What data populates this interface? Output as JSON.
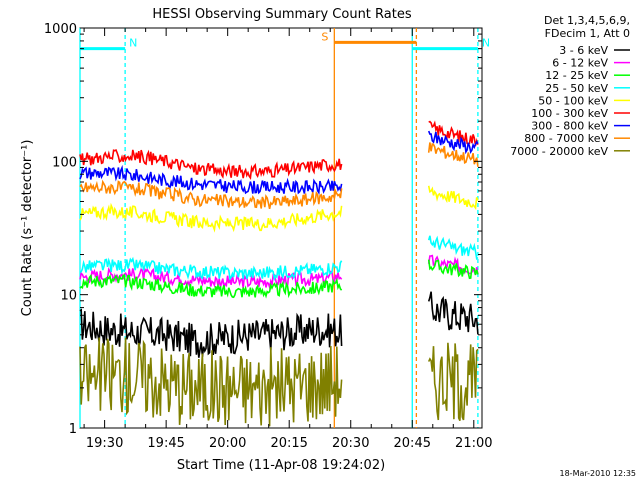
{
  "chart_data": {
    "type": "line",
    "title": "HESSI Observing Summary Count Rates",
    "xlabel": "Start Time (11-Apr-08 19:24:02)",
    "ylabel": "Count Rate (s⁻¹ detector⁻¹)",
    "y_scale": "log",
    "ylim": [
      1,
      1000
    ],
    "xlim": [
      "19:24",
      "21:02"
    ],
    "x_ticks": [
      "19:30",
      "19:45",
      "20:00",
      "20:15",
      "20:30",
      "20:45",
      "21:00"
    ],
    "y_ticks": [
      "1",
      "10",
      "100",
      "1000"
    ],
    "grid": false,
    "legend_position": "right",
    "legend_header": [
      "Det 1,3,4,5,6,9,",
      "FDecim 1, Att 0"
    ],
    "series": [
      {
        "name": "3 - 6 keV",
        "color": "#000000",
        "segments": [
          {
            "x": [
              "19:24",
              "19:30",
              "19:38",
              "19:45",
              "19:52",
              "20:00",
              "20:08",
              "20:15",
              "20:22",
              "20:28"
            ],
            "y": [
              6,
              5.5,
              5.2,
              5,
              4.5,
              4.8,
              5,
              5.2,
              5.5,
              5.3
            ]
          },
          {
            "x": [
              "20:49",
              "20:52",
              "20:55",
              "20:58",
              "21:01"
            ],
            "y": [
              8,
              7.5,
              7,
              6.8,
              6.5
            ]
          }
        ]
      },
      {
        "name": "6 - 12 keV",
        "color": "#ff00ff",
        "segments": [
          {
            "x": [
              "19:24",
              "19:30",
              "19:38",
              "19:45",
              "19:52",
              "20:00",
              "20:08",
              "20:15",
              "20:22",
              "20:28"
            ],
            "y": [
              13.5,
              14,
              14.2,
              13.5,
              13,
              12.5,
              12.5,
              13,
              13,
              14
            ]
          },
          {
            "x": [
              "20:49",
              "20:52",
              "20:55",
              "20:58",
              "21:01"
            ],
            "y": [
              18,
              17,
              16.5,
              16,
              15.5
            ]
          }
        ]
      },
      {
        "name": "12 - 25 keV",
        "color": "#00ff00",
        "segments": [
          {
            "x": [
              "19:24",
              "19:30",
              "19:38",
              "19:45",
              "19:52",
              "20:00",
              "20:08",
              "20:15",
              "20:22",
              "20:28"
            ],
            "y": [
              12.5,
              12.8,
              12.5,
              11.5,
              10.8,
              10.5,
              10.6,
              11,
              11.2,
              12
            ]
          },
          {
            "x": [
              "20:49",
              "20:52",
              "20:55",
              "20:58",
              "21:01"
            ],
            "y": [
              17,
              16,
              15.5,
              15,
              14.5
            ]
          }
        ]
      },
      {
        "name": "25 - 50 keV",
        "color": "#00ffff",
        "segments": [
          {
            "x": [
              "19:24",
              "19:30",
              "19:38",
              "19:45",
              "19:52",
              "20:00",
              "20:08",
              "20:15",
              "20:22",
              "20:28"
            ],
            "y": [
              16,
              16.5,
              16.5,
              15.5,
              15,
              14.5,
              14.5,
              15,
              15.5,
              16.5
            ]
          },
          {
            "x": [
              "20:49",
              "20:52",
              "20:55",
              "20:58",
              "21:01"
            ],
            "y": [
              25,
              24,
              22.5,
              21.5,
              20.5
            ]
          }
        ]
      },
      {
        "name": "50 - 100 keV",
        "color": "#ffff00",
        "segments": [
          {
            "x": [
              "19:24",
              "19:30",
              "19:38",
              "19:45",
              "19:52",
              "20:00",
              "20:08",
              "20:15",
              "20:22",
              "20:28"
            ],
            "y": [
              40,
              42,
              41,
              38,
              35,
              34,
              34,
              36,
              39,
              42
            ]
          },
          {
            "x": [
              "20:49",
              "20:52",
              "20:55",
              "20:58",
              "21:01"
            ],
            "y": [
              60,
              57,
              54,
              51,
              49
            ]
          }
        ]
      },
      {
        "name": "100 - 300 keV",
        "color": "#ff0000",
        "segments": [
          {
            "x": [
              "19:24",
              "19:30",
              "19:38",
              "19:45",
              "19:52",
              "20:00",
              "20:08",
              "20:15",
              "20:22",
              "20:28"
            ],
            "y": [
              102,
              108,
              110,
              100,
              88,
              84,
              84,
              87,
              93,
              96
            ]
          },
          {
            "x": [
              "20:49",
              "20:52",
              "20:55",
              "20:58",
              "21:01"
            ],
            "y": [
              180,
              170,
              158,
              150,
              145
            ]
          }
        ]
      },
      {
        "name": "300 - 800 keV",
        "color": "#0000ff",
        "segments": [
          {
            "x": [
              "19:24",
              "19:30",
              "19:38",
              "19:45",
              "19:52",
              "20:00",
              "20:08",
              "20:15",
              "20:22",
              "20:28"
            ],
            "y": [
              82,
              82,
              78,
              72,
              68,
              65,
              64,
              64,
              64,
              64
            ]
          },
          {
            "x": [
              "20:49",
              "20:52",
              "20:55",
              "20:58",
              "21:01"
            ],
            "y": [
              155,
              146,
              138,
              132,
              126
            ]
          }
        ]
      },
      {
        "name": "800 - 7000 keV",
        "color": "#ff8800",
        "segments": [
          {
            "x": [
              "19:24",
              "19:30",
              "19:38",
              "19:45",
              "19:52",
              "20:00",
              "20:08",
              "20:15",
              "20:22",
              "20:28"
            ],
            "y": [
              63,
              64,
              62,
              57,
              52,
              50,
              49,
              50,
              53,
              56
            ]
          },
          {
            "x": [
              "20:49",
              "20:52",
              "20:55",
              "20:58",
              "21:01"
            ],
            "y": [
              128,
              120,
              113,
              108,
              102
            ]
          }
        ]
      },
      {
        "name": "7000 - 20000 keV",
        "color": "#808000",
        "segments": [
          {
            "x": [
              "19:24",
              "19:30",
              "19:38",
              "19:45",
              "19:52",
              "20:00",
              "20:08",
              "20:15",
              "20:22",
              "20:28"
            ],
            "y": [
              2.3,
              2.5,
              2.5,
              2.2,
              2,
              2,
              2,
              2.1,
              2.2,
              2.4
            ]
          },
          {
            "x": [
              "20:49",
              "20:52",
              "20:55",
              "20:58",
              "21:01"
            ],
            "y": [
              2.2,
              2.3,
              2.3,
              2.2,
              2.2
            ]
          }
        ]
      }
    ],
    "annotations": [
      {
        "text": "N",
        "color": "#00ffff",
        "x_start": "19:24",
        "x_end": "19:35",
        "y": 700
      },
      {
        "text": "N",
        "color": "#00ffff",
        "x_start": "20:45",
        "x_end": "21:01",
        "y": 700
      },
      {
        "text": "S",
        "color": "#ff8800",
        "x_start": "20:26",
        "x_end": "20:46",
        "y": 780
      }
    ],
    "event_lines": [
      {
        "x": "19:24",
        "color": "#00ffff",
        "style": "solid"
      },
      {
        "x": "19:35",
        "color": "#00ffff",
        "style": "dashed"
      },
      {
        "x": "20:26",
        "color": "#ff8800",
        "style": "solid"
      },
      {
        "x": "20:45",
        "color": "#00ffff",
        "style": "solid"
      },
      {
        "x": "20:46",
        "color": "#ff8800",
        "style": "dashed"
      },
      {
        "x": "21:01",
        "color": "#00ffff",
        "style": "dashed"
      }
    ],
    "footer_date": "18-Mar-2010 12:35"
  }
}
